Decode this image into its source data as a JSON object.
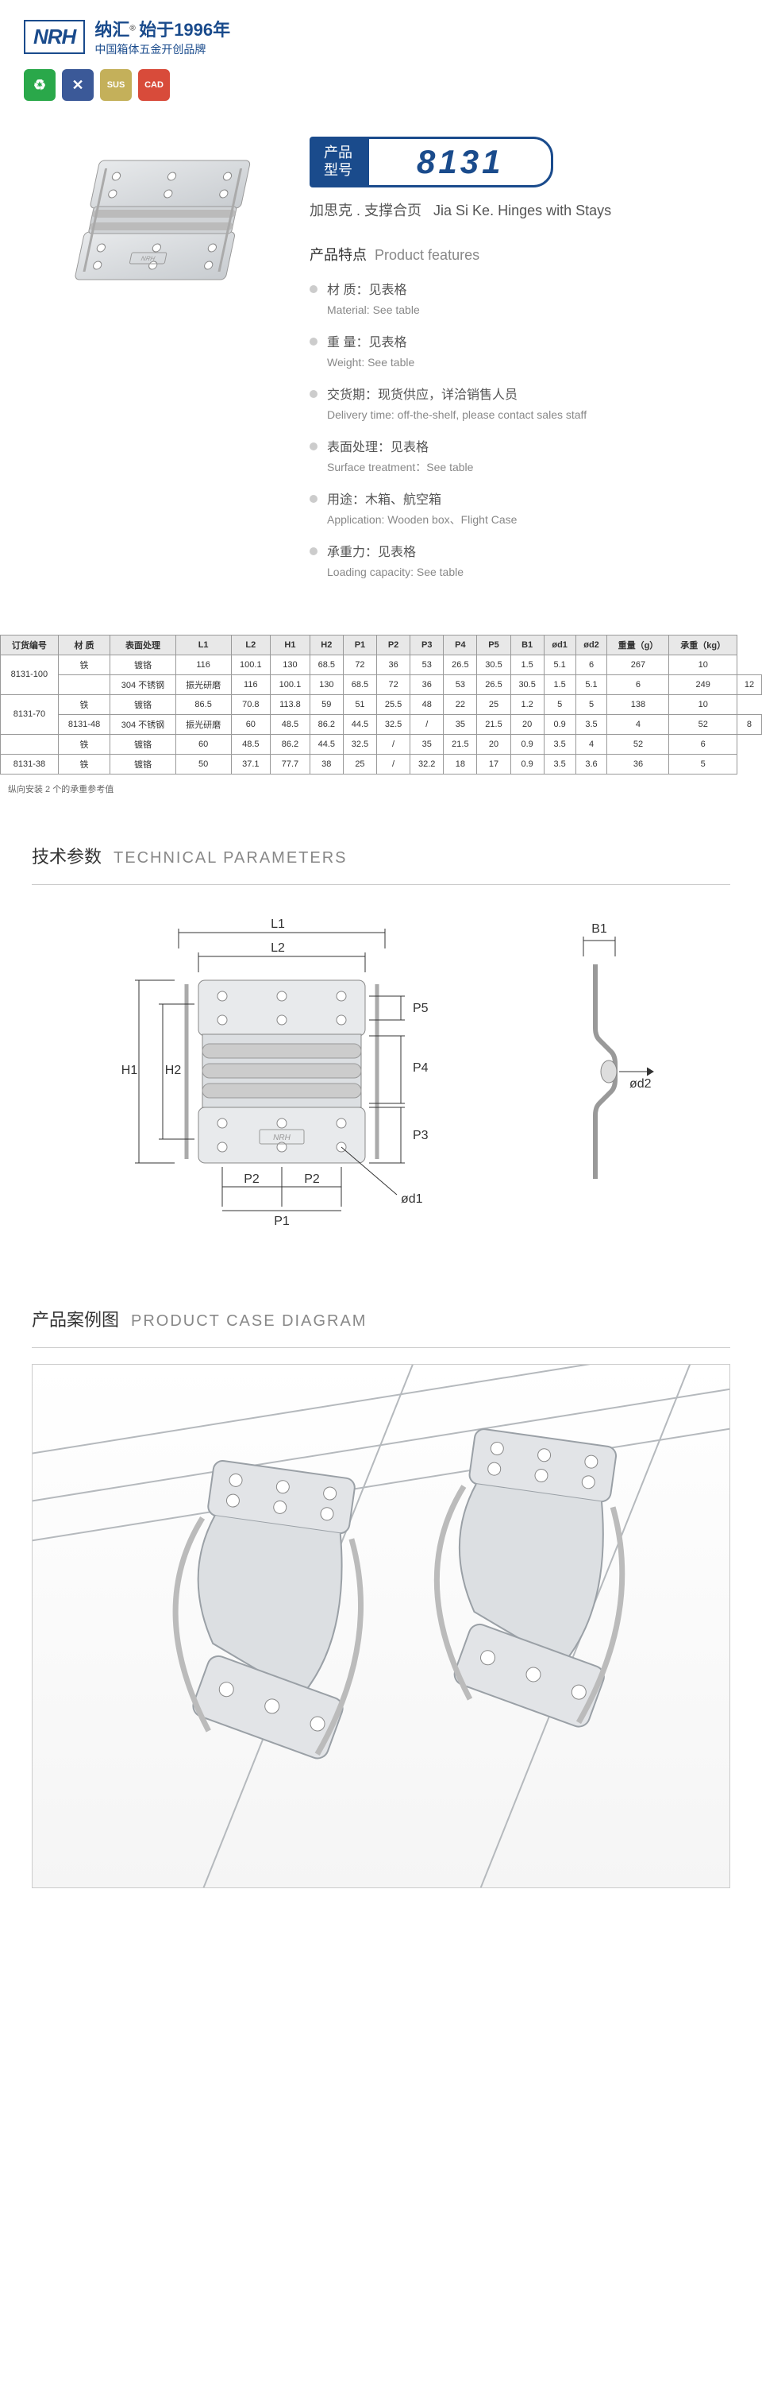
{
  "header": {
    "brand": "纳汇",
    "since": "始于1996年",
    "tagline": "中国箱体五金开创品牌",
    "logo": "NRH"
  },
  "badges": [
    {
      "bg": "#2aa84a",
      "icon": "♻"
    },
    {
      "bg": "#3b5998",
      "icon": "✕"
    },
    {
      "bg": "#c4b05a",
      "text": "SUS"
    },
    {
      "bg": "#d84b3a",
      "text": "CAD"
    }
  ],
  "model": {
    "label_cn1": "产品",
    "label_cn2": "型号",
    "number": "8131"
  },
  "subtitle_cn": "加思克 . 支撑合页",
  "subtitle_en": "Jia Si Ke. Hinges with Stays",
  "features_title_cn": "产品特点",
  "features_title_en": "Product features",
  "features": [
    {
      "cn": "材 质：见表格",
      "en": "Material: See table"
    },
    {
      "cn": "重 量：见表格",
      "en": "Weight: See table"
    },
    {
      "cn": "交货期：现货供应，详洽销售人员",
      "en": "Delivery time: off-the-shelf, please contact sales staff"
    },
    {
      "cn": "表面处理：见表格",
      "en": "Surface treatment：See table"
    },
    {
      "cn": "用途：木箱、航空箱",
      "en": "Application: Wooden box、Flight Case"
    },
    {
      "cn": "承重力：见表格",
      "en": "Loading capacity: See table"
    }
  ],
  "table": {
    "headers": [
      "订货编号",
      "材 质",
      "表面处理",
      "L1",
      "L2",
      "H1",
      "H2",
      "P1",
      "P2",
      "P3",
      "P4",
      "P5",
      "B1",
      "ød1",
      "ød2",
      "重量（g）",
      "承重（kg）"
    ],
    "rows": [
      [
        "8131-100",
        "铁",
        "镀铬",
        "116",
        "100.1",
        "130",
        "68.5",
        "72",
        "36",
        "53",
        "26.5",
        "30.5",
        "1.5",
        "5.1",
        "6",
        "267",
        "10"
      ],
      [
        "",
        "304 不锈钢",
        "振光研磨",
        "116",
        "100.1",
        "130",
        "68.5",
        "72",
        "36",
        "53",
        "26.5",
        "30.5",
        "1.5",
        "5.1",
        "6",
        "249",
        "12"
      ],
      [
        "8131-70",
        "铁",
        "镀铬",
        "86.5",
        "70.8",
        "113.8",
        "59",
        "51",
        "25.5",
        "48",
        "22",
        "25",
        "1.2",
        "5",
        "5",
        "138",
        "10"
      ],
      [
        "8131-48",
        "304 不锈钢",
        "振光研磨",
        "60",
        "48.5",
        "86.2",
        "44.5",
        "32.5",
        "/",
        "35",
        "21.5",
        "20",
        "0.9",
        "3.5",
        "4",
        "52",
        "8"
      ],
      [
        "",
        "铁",
        "镀铬",
        "60",
        "48.5",
        "86.2",
        "44.5",
        "32.5",
        "/",
        "35",
        "21.5",
        "20",
        "0.9",
        "3.5",
        "4",
        "52",
        "6"
      ],
      [
        "8131-38",
        "铁",
        "镀铬",
        "50",
        "37.1",
        "77.7",
        "38",
        "25",
        "/",
        "32.2",
        "18",
        "17",
        "0.9",
        "3.5",
        "3.6",
        "36",
        "5"
      ]
    ]
  },
  "table_note": "纵向安装 2 个的承重参考值",
  "tech_title_cn": "技术参数",
  "tech_title_en": "TECHNICAL PARAMETERS",
  "case_title_cn": "产品案例图",
  "case_title_en": "PRODUCT CASE DIAGRAM",
  "dim_labels": [
    "L1",
    "L2",
    "H1",
    "H2",
    "P1",
    "P2",
    "P3",
    "P4",
    "P5",
    "B1",
    "ød1",
    "ød2"
  ],
  "colors": {
    "primary": "#1a4b8c",
    "metal": "#d5d7da",
    "metal_dark": "#b8bcc0",
    "line": "#333"
  }
}
